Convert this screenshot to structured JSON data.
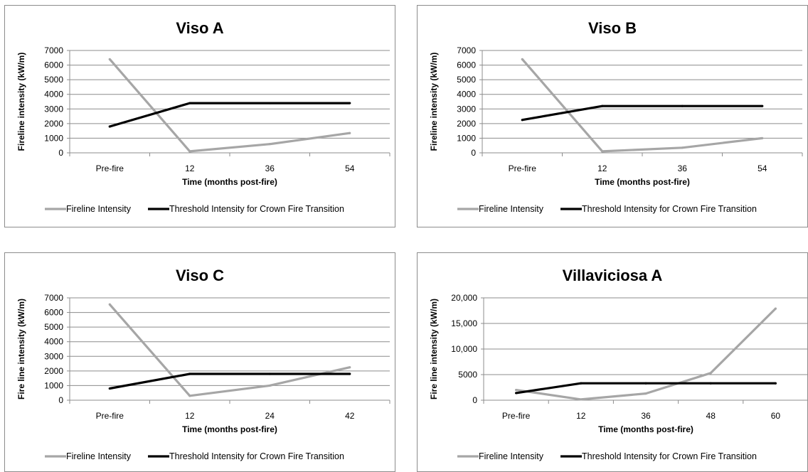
{
  "chart_data": [
    {
      "type": "line",
      "title": "Viso A",
      "xlabel": "Time (months post-fire)",
      "ylabel": "Fireline intensity (kW/m)",
      "categories": [
        "Pre-fire",
        "12",
        "36",
        "54"
      ],
      "ylim": [
        0,
        7000
      ],
      "yticks": [
        0,
        1000,
        2000,
        3000,
        4000,
        5000,
        6000,
        7000
      ],
      "ytick_labels": [
        "0",
        "1000",
        "2000",
        "3000",
        "4000",
        "5000",
        "6000",
        "7000"
      ],
      "grid": true,
      "legend_position": "bottom",
      "series": [
        {
          "name": "Fireline Intensity",
          "color": "#a6a6a6",
          "values": [
            6400,
            100,
            600,
            1350
          ]
        },
        {
          "name": "Threshold Intensity for Crown Fire Transition",
          "color": "#000000",
          "values": [
            1800,
            3400,
            3400,
            3400
          ]
        }
      ]
    },
    {
      "type": "line",
      "title": "Viso B",
      "xlabel": "Time (months post-fire)",
      "ylabel": "Fireline intensity (kW/m)",
      "categories": [
        "Pre-fire",
        "12",
        "36",
        "54"
      ],
      "ylim": [
        0,
        7000
      ],
      "yticks": [
        0,
        1000,
        2000,
        3000,
        4000,
        5000,
        6000,
        7000
      ],
      "ytick_labels": [
        "0",
        "1000",
        "2000",
        "3000",
        "4000",
        "5000",
        "6000",
        "7000"
      ],
      "grid": true,
      "legend_position": "bottom",
      "series": [
        {
          "name": "Fireline Intensity",
          "color": "#a6a6a6",
          "values": [
            6400,
            100,
            350,
            1000
          ]
        },
        {
          "name": "Threshold Intensity for Crown Fire Transition",
          "color": "#000000",
          "values": [
            2250,
            3200,
            3200,
            3200
          ]
        }
      ]
    },
    {
      "type": "line",
      "title": "Viso C",
      "xlabel": "Time (months post-fire)",
      "ylabel": "Fire line intensity (kW/m)",
      "categories": [
        "Pre-fire",
        "12",
        "24",
        "42"
      ],
      "ylim": [
        0,
        7000
      ],
      "yticks": [
        0,
        1000,
        2000,
        3000,
        4000,
        5000,
        6000,
        7000
      ],
      "ytick_labels": [
        "0",
        "1000",
        "2000",
        "3000",
        "4000",
        "5000",
        "6000",
        "7000"
      ],
      "grid": true,
      "legend_position": "bottom",
      "series": [
        {
          "name": "Fireline Intensity",
          "color": "#a6a6a6",
          "values": [
            6550,
            300,
            1000,
            2250
          ]
        },
        {
          "name": "Threshold Intensity for Crown Fire Transition",
          "color": "#000000",
          "values": [
            800,
            1800,
            1800,
            1800
          ]
        }
      ]
    },
    {
      "type": "line",
      "title": "Villaviciosa A",
      "xlabel": "Time (months post-fire)",
      "ylabel": "Fire line intensity (kW/m)",
      "categories": [
        "Pre-fire",
        "12",
        "36",
        "48",
        "60"
      ],
      "ylim": [
        0,
        20000
      ],
      "yticks": [
        0,
        5000,
        10000,
        15000,
        20000
      ],
      "ytick_labels": [
        "0",
        "5000",
        "10,000",
        "15,000",
        "20,000"
      ],
      "grid": true,
      "legend_position": "bottom",
      "series": [
        {
          "name": "Fireline Intensity",
          "color": "#a6a6a6",
          "values": [
            2000,
            150,
            1300,
            5300,
            17900
          ]
        },
        {
          "name": "Threshold Intensity for Crown Fire Transition",
          "color": "#000000",
          "values": [
            1400,
            3300,
            3300,
            3300,
            3300
          ]
        }
      ]
    }
  ]
}
